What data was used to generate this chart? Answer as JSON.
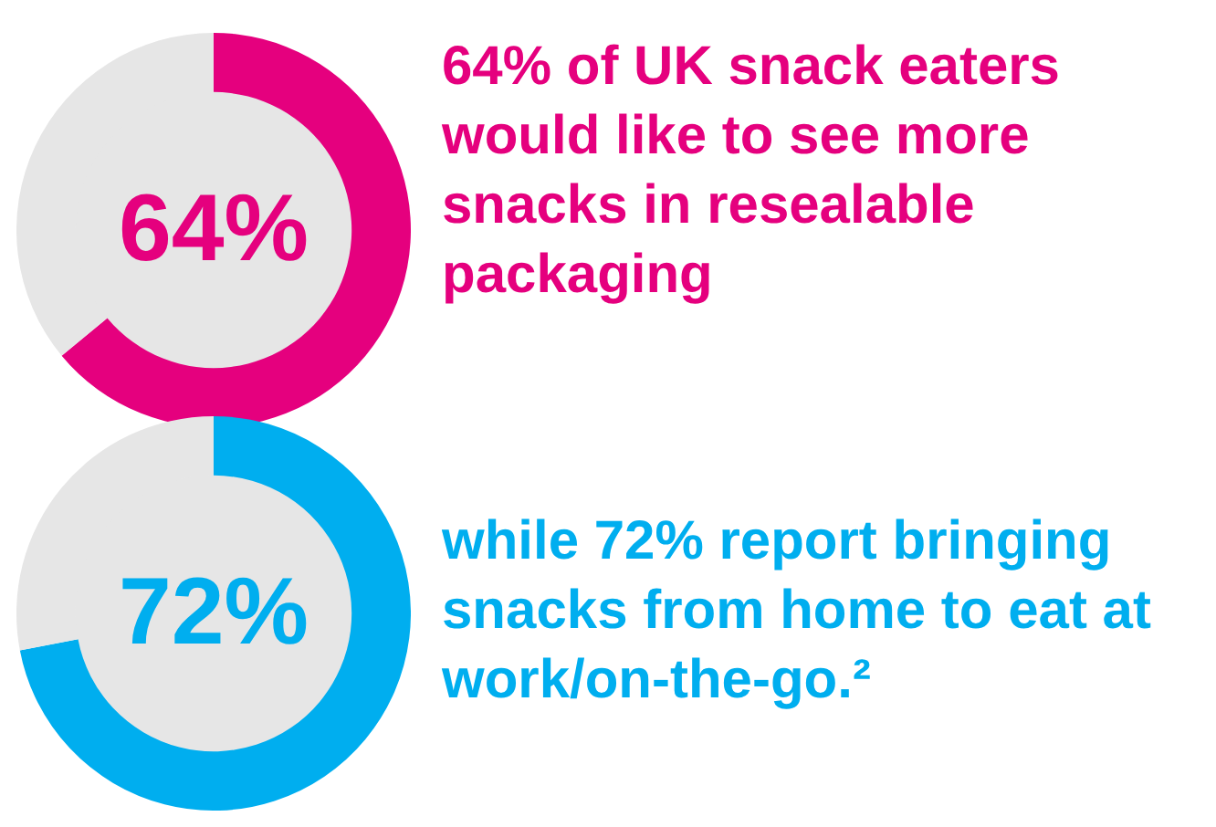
{
  "chart_data": [
    {
      "type": "donut",
      "categories": [
        null,
        null
      ],
      "values": [
        64,
        36
      ],
      "colors": [
        "#e5007e",
        "#e6e6e6"
      ],
      "value_labels": [
        "64%",
        null
      ],
      "annotations": [
        "64% of UK snack eaters would like to see more snacks in resealable packaging"
      ]
    },
    {
      "type": "donut",
      "categories": [
        null,
        null
      ],
      "values": [
        72,
        28
      ],
      "colors": [
        "#00aeef",
        "#e6e6e6"
      ],
      "value_labels": [
        "72%",
        null
      ],
      "annotations": [
        "while 72% report bringing snacks from home to eat at work/on-the-go.²"
      ]
    }
  ]
}
